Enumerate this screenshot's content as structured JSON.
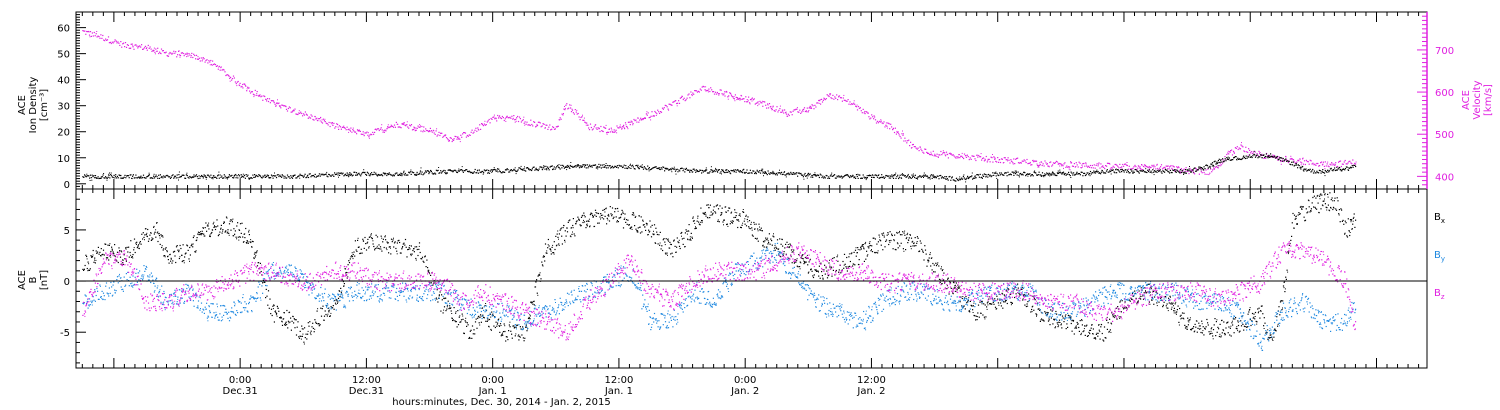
{
  "chart_data": [
    {
      "type": "scatter",
      "panel": "top",
      "ylabel_left": [
        "ACE",
        "Ion Density",
        "[cm⁻³]"
      ],
      "ylabel_right": [
        "ACE",
        "Velocity",
        "[km/s]"
      ],
      "ylim_left": [
        -2,
        66
      ],
      "ylim_right": [
        370,
        790
      ],
      "left_ticks": [
        0,
        10,
        20,
        30,
        40,
        50,
        60
      ],
      "right_ticks": [
        400,
        500,
        600,
        700
      ],
      "series": [
        {
          "axis": "left",
          "color": "#000000",
          "x": [
            -15,
            -10,
            -5,
            0,
            5,
            10,
            15,
            20,
            24,
            28,
            32,
            36,
            40,
            44,
            48,
            52,
            56,
            60,
            62,
            64,
            66,
            68,
            70,
            72,
            74,
            76,
            78,
            80,
            82,
            84,
            86,
            88,
            89,
            90,
            91,
            92,
            93,
            94,
            95,
            96,
            98,
            100,
            101,
            102,
            103,
            104,
            105,
            106
          ],
          "y": [
            3,
            3,
            3,
            3,
            3,
            4,
            4,
            5,
            5,
            6,
            7,
            7,
            6,
            5,
            5,
            4,
            3,
            3,
            3,
            3,
            3,
            2,
            3,
            4,
            4,
            4,
            4,
            4,
            5,
            5,
            5,
            5,
            5,
            5,
            6,
            7,
            9,
            10,
            10,
            11,
            11,
            8,
            6,
            5,
            5,
            6,
            6,
            7
          ]
        },
        {
          "axis": "right",
          "color": "#e020e0",
          "x": [
            -15,
            -13,
            -11,
            -9,
            -7,
            -5,
            -3,
            0,
            3,
            6,
            9,
            12,
            15,
            18,
            20,
            22,
            24,
            26,
            28,
            30,
            31,
            32,
            33,
            35,
            37,
            40,
            44,
            48,
            50,
            52,
            54,
            56,
            58,
            60,
            62,
            64,
            66,
            68,
            70,
            72,
            74,
            76,
            78,
            80,
            82,
            84,
            86,
            88,
            90,
            92,
            93,
            94,
            95,
            96,
            97,
            98,
            100,
            102,
            104,
            106
          ],
          "y": [
            745,
            730,
            712,
            707,
            693,
            690,
            675,
            620,
            575,
            550,
            520,
            500,
            525,
            510,
            490,
            505,
            540,
            540,
            525,
            515,
            570,
            550,
            520,
            510,
            525,
            560,
            610,
            585,
            570,
            550,
            560,
            595,
            575,
            540,
            515,
            470,
            455,
            450,
            445,
            440,
            438,
            432,
            430,
            428,
            426,
            424,
            423,
            422,
            415,
            412,
            430,
            455,
            470,
            460,
            452,
            446,
            440,
            432,
            430,
            435
          ]
        }
      ]
    },
    {
      "type": "scatter",
      "panel": "bottom",
      "ylabel": [
        "ACE",
        "B",
        "[nT]"
      ],
      "ylim": [
        -8.5,
        9
      ],
      "ticks": [
        -5,
        0,
        5
      ],
      "zero_line": true,
      "series": [
        {
          "name": "B",
          "sub": "x",
          "color": "#000000",
          "x": [
            -15,
            -13,
            -11,
            -9,
            -8,
            -7,
            -5,
            -3,
            -1,
            0,
            1,
            3,
            5,
            6,
            7,
            9,
            11,
            13,
            14,
            15,
            17,
            19,
            21,
            22,
            23,
            25,
            27,
            29,
            31,
            33,
            35,
            37,
            39,
            41,
            42,
            44,
            46,
            48,
            50,
            52,
            53,
            55,
            58,
            61,
            64,
            67,
            70,
            72,
            74,
            76,
            78,
            80,
            82,
            84,
            86,
            88,
            90,
            92,
            93,
            94,
            95,
            96,
            97,
            98,
            99,
            100,
            102,
            104,
            105,
            106
          ],
          "y": [
            1.5,
            3,
            2.5,
            4.8,
            5,
            2.5,
            3,
            5.2,
            5.5,
            5,
            4,
            -3,
            -4,
            -5.5,
            -4,
            -2,
            3.5,
            3.8,
            3.5,
            3.5,
            3,
            -2,
            -4,
            -5,
            -3,
            -5,
            -5.2,
            3,
            5,
            6,
            6.5,
            6,
            5,
            3,
            4,
            6.8,
            6.5,
            6,
            4,
            3,
            2,
            1,
            2,
            4,
            4,
            0,
            -3,
            -2,
            -1,
            -3,
            -4,
            -4.5,
            -5,
            -2,
            -1,
            -2,
            -4,
            -4.5,
            -4.5,
            -4.5,
            -4,
            -3.5,
            -3,
            -6,
            -2,
            6,
            7.5,
            8,
            5,
            6
          ]
        },
        {
          "name": "B",
          "sub": "y",
          "color": "#1e88e0",
          "x": [
            -15,
            -13,
            -11,
            -9,
            -7,
            -5,
            -3,
            -1,
            1,
            3,
            5,
            7,
            9,
            11,
            13,
            15,
            17,
            19,
            21,
            23,
            25,
            27,
            29,
            31,
            33,
            35,
            37,
            39,
            41,
            43,
            45,
            47,
            49,
            51,
            53,
            55,
            57,
            59,
            61,
            63,
            65,
            67,
            69,
            71,
            73,
            75,
            77,
            79,
            81,
            83,
            85,
            87,
            89,
            91,
            93,
            95,
            97,
            99,
            101,
            103,
            105,
            106
          ],
          "y": [
            -2,
            -1,
            0,
            1,
            -2,
            -1,
            -3,
            -3,
            -2,
            1,
            1,
            -1,
            -2,
            -1,
            -1,
            -1,
            -1,
            -1,
            -2,
            -3,
            -3,
            -4,
            -3,
            -2,
            -1,
            0,
            1,
            -4,
            -4,
            -1,
            -2,
            1,
            2,
            3,
            0,
            -2,
            -3,
            -4,
            -2,
            -1,
            -1,
            -2,
            -2,
            -1,
            -1,
            -1,
            -3,
            -3,
            -2,
            -1,
            -1,
            -1,
            -1,
            -2,
            -2,
            -3,
            -6,
            -3,
            -2,
            -4,
            -4,
            -2
          ]
        },
        {
          "name": "B",
          "sub": "z",
          "color": "#e020e0",
          "x": [
            -15,
            -13,
            -11,
            -9,
            -7,
            -5,
            -3,
            -1,
            1,
            3,
            5,
            7,
            9,
            11,
            13,
            15,
            17,
            19,
            21,
            23,
            25,
            27,
            29,
            31,
            33,
            35,
            37,
            39,
            41,
            43,
            45,
            47,
            49,
            51,
            53,
            55,
            57,
            59,
            61,
            63,
            65,
            67,
            69,
            71,
            73,
            75,
            77,
            79,
            81,
            83,
            85,
            87,
            89,
            91,
            93,
            95,
            97,
            99,
            101,
            103,
            105,
            106
          ],
          "y": [
            -3,
            2,
            2.5,
            -2,
            -2,
            -1,
            -1,
            0,
            1,
            1,
            0,
            0,
            1,
            1,
            0,
            0,
            0,
            0,
            -2,
            -1,
            -2,
            -3,
            -4,
            -5,
            -2,
            0,
            2,
            -1,
            -2,
            0,
            1,
            1,
            1,
            2,
            3,
            2,
            1,
            1,
            0,
            0,
            0,
            0,
            -1,
            -1,
            -1,
            -1,
            -2,
            -2,
            -3,
            -3,
            -2,
            -1,
            -1,
            -1,
            -2,
            -1,
            0,
            3,
            3,
            2,
            0,
            -5
          ]
        }
      ],
      "legend_position": "right"
    }
  ],
  "x_axis": {
    "range_hours": [
      -15.6,
      112.8
    ],
    "ticks": [
      {
        "at": 0,
        "time": "0:00",
        "date": "Dec.31"
      },
      {
        "at": 12,
        "time": "12:00",
        "date": "Dec.31"
      },
      {
        "at": 24,
        "time": "0:00",
        "date": "Jan. 1"
      },
      {
        "at": 36,
        "time": "12:00",
        "date": "Jan. 1"
      },
      {
        "at": 48,
        "time": "0:00",
        "date": "Jan. 2"
      },
      {
        "at": 60,
        "time": "12:00",
        "date": "Jan. 2"
      }
    ],
    "xlabel": "hours:minutes, Dec. 30, 2014 - Jan. 2, 2015"
  }
}
